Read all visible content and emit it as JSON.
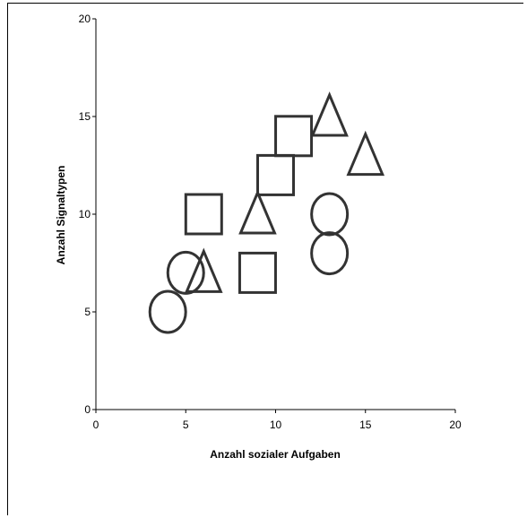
{
  "chart_data": {
    "type": "scatter",
    "xlabel": "Anzahl sozialer Aufgaben",
    "ylabel": "Anzahl Signaltypen",
    "xlim": [
      0,
      20
    ],
    "ylim": [
      0,
      20
    ],
    "xticks": [
      0,
      5,
      10,
      15,
      20
    ],
    "yticks": [
      0,
      5,
      10,
      15,
      20
    ],
    "grid": false,
    "series": [
      {
        "marker": "square",
        "points": [
          [
            6,
            10
          ],
          [
            9,
            7
          ],
          [
            10,
            12
          ],
          [
            11,
            14
          ]
        ]
      },
      {
        "marker": "triangle",
        "points": [
          [
            6,
            7
          ],
          [
            9,
            10
          ],
          [
            13,
            15
          ],
          [
            15,
            13
          ]
        ]
      },
      {
        "marker": "circle",
        "points": [
          [
            4,
            5
          ],
          [
            5,
            7
          ],
          [
            13,
            10
          ],
          [
            13,
            8
          ]
        ]
      }
    ],
    "colors": {
      "marker_stroke": "#333333",
      "axis": "#000000"
    }
  }
}
